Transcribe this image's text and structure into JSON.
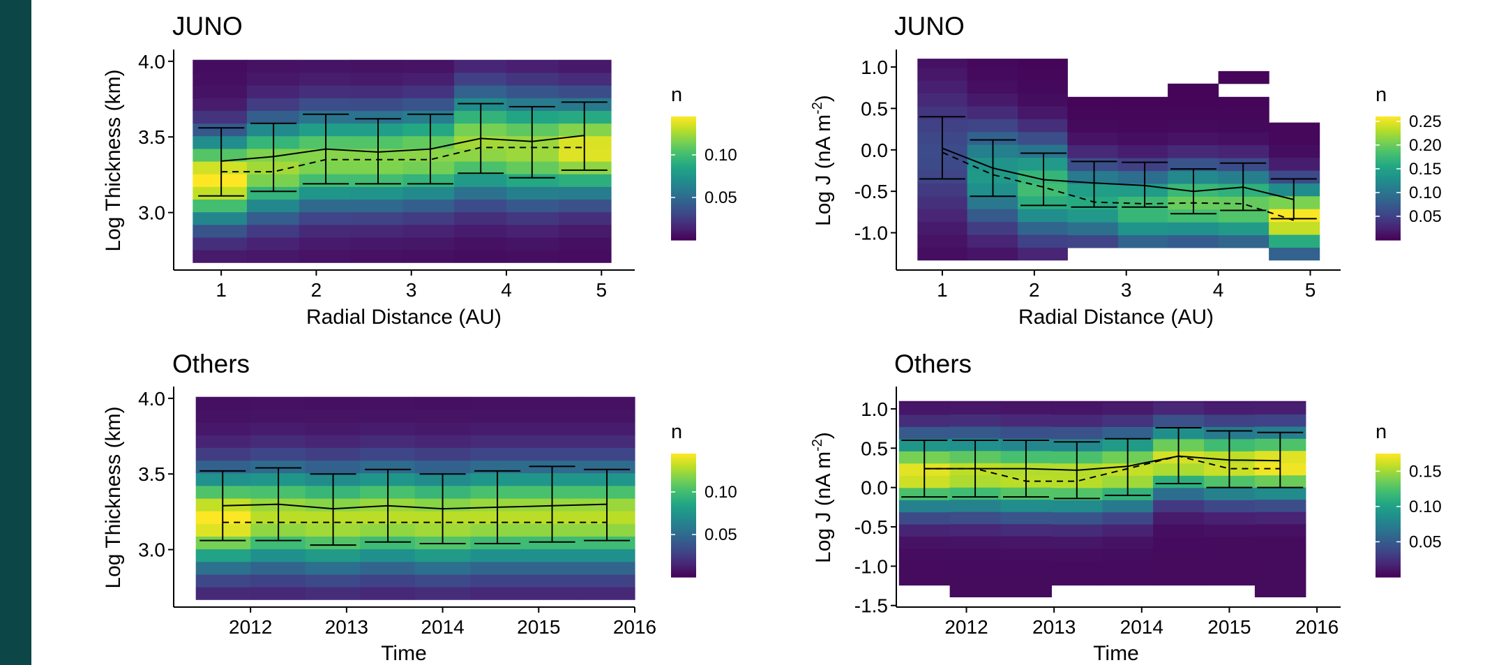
{
  "chart_data": [
    {
      "type": "heatmap",
      "title": "JUNO",
      "xlabel": "Radial Distance (AU)",
      "ylabel": "Log Thickness (km)",
      "x_ticks": [
        1,
        2,
        3,
        4,
        5
      ],
      "y_ticks": [
        3.0,
        3.5,
        4.0
      ],
      "y_tick_labels": [
        "3.0",
        "3.5",
        "4.0"
      ],
      "xlim": [
        0.5,
        5.35
      ],
      "ylim": [
        2.62,
        4.05
      ],
      "x_bins": [
        [
          0.7,
          1.27
        ],
        [
          1.27,
          1.82
        ],
        [
          1.82,
          2.36
        ],
        [
          2.36,
          2.91
        ],
        [
          2.91,
          3.45
        ],
        [
          3.45,
          4.0
        ],
        [
          4.0,
          4.55
        ],
        [
          4.55,
          5.1
        ]
      ],
      "y_bin_edges": [
        2.67,
        4.01
      ],
      "y_bin_count": 16,
      "colorbar": {
        "title": "n",
        "ticks": [
          0.05,
          0.1
        ],
        "tick_labels": [
          "0.05",
          "0.10"
        ],
        "range": [
          0.0,
          0.145
        ]
      },
      "bin_columns": [
        {
          "peak": 3.22,
          "spread": 0.2,
          "max": 0.145,
          "min": 0.005
        },
        {
          "peak": 3.3,
          "spread": 0.22,
          "max": 0.125,
          "min": 0.006
        },
        {
          "peak": 3.35,
          "spread": 0.22,
          "max": 0.12,
          "min": 0.006
        },
        {
          "peak": 3.35,
          "spread": 0.22,
          "max": 0.12,
          "min": 0.005
        },
        {
          "peak": 3.37,
          "spread": 0.22,
          "max": 0.12,
          "min": 0.005
        },
        {
          "peak": 3.45,
          "spread": 0.24,
          "max": 0.125,
          "min": 0.004
        },
        {
          "peak": 3.42,
          "spread": 0.24,
          "max": 0.125,
          "min": 0.004
        },
        {
          "peak": 3.42,
          "spread": 0.22,
          "max": 0.14,
          "min": 0.004
        }
      ],
      "mean_line": {
        "x": [
          1.0,
          1.55,
          2.1,
          2.65,
          3.2,
          3.73,
          4.27,
          4.82
        ],
        "y": [
          3.34,
          3.37,
          3.42,
          3.4,
          3.42,
          3.49,
          3.47,
          3.51
        ]
      },
      "median_line": {
        "x": [
          1.0,
          1.55,
          2.1,
          2.65,
          3.2,
          3.73,
          4.27,
          4.82
        ],
        "y": [
          3.27,
          3.27,
          3.35,
          3.35,
          3.35,
          3.43,
          3.43,
          3.43
        ]
      },
      "error_bars": {
        "x": [
          1.0,
          1.55,
          2.1,
          2.65,
          3.2,
          3.73,
          4.27,
          4.82
        ],
        "low": [
          3.11,
          3.14,
          3.19,
          3.19,
          3.19,
          3.26,
          3.23,
          3.28
        ],
        "high": [
          3.56,
          3.59,
          3.65,
          3.62,
          3.65,
          3.72,
          3.7,
          3.73
        ]
      }
    },
    {
      "type": "heatmap",
      "title": "JUNO",
      "xlabel": "Radial Distance (AU)",
      "ylabel": "Log J (nA m",
      "ylabel_sup": "-2",
      "ylabel_suffix": ")",
      "x_ticks": [
        1,
        2,
        3,
        4,
        5
      ],
      "y_ticks": [
        -1.0,
        -0.5,
        0.0,
        0.5,
        1.0
      ],
      "y_tick_labels": [
        "-1.0",
        "-0.5",
        "0.0",
        "0.5",
        "1.0"
      ],
      "xlim": [
        0.5,
        5.33
      ],
      "ylim": [
        -1.45,
        1.16
      ],
      "x_bins": [
        [
          0.73,
          1.27
        ],
        [
          1.27,
          1.82
        ],
        [
          1.82,
          2.36
        ],
        [
          2.36,
          2.91
        ],
        [
          2.91,
          3.45
        ],
        [
          3.45,
          4.0
        ],
        [
          4.0,
          4.55
        ],
        [
          4.55,
          5.1
        ]
      ],
      "column_y_ranges": [
        [
          -1.33,
          1.1
        ],
        [
          -1.33,
          1.1
        ],
        [
          -1.33,
          1.1
        ],
        [
          -1.18,
          0.64
        ],
        [
          -1.18,
          0.64
        ],
        [
          -1.18,
          0.8
        ],
        [
          -1.18,
          0.64,
          0.8,
          0.95
        ],
        [
          -1.33,
          0.33
        ]
      ],
      "y_bin_size": 0.155,
      "colorbar": {
        "title": "n",
        "ticks": [
          0.05,
          0.1,
          0.15,
          0.2,
          0.25
        ],
        "tick_labels": [
          "0.05",
          "0.10",
          "0.15",
          "0.20",
          "0.25"
        ],
        "range": [
          0.0,
          0.26
        ]
      },
      "bin_columns": [
        {
          "peak": -0.05,
          "spread": 0.55,
          "max": 0.06,
          "min": 0.005
        },
        {
          "peak": -0.3,
          "spread": 0.42,
          "max": 0.14,
          "min": 0.005
        },
        {
          "peak": -0.45,
          "spread": 0.4,
          "max": 0.18,
          "min": 0.004
        },
        {
          "peak": -0.62,
          "spread": 0.32,
          "max": 0.16,
          "min": 0.004
        },
        {
          "peak": -0.7,
          "spread": 0.32,
          "max": 0.18,
          "min": 0.004
        },
        {
          "peak": -0.65,
          "spread": 0.32,
          "max": 0.2,
          "min": 0.004
        },
        {
          "peak": -0.68,
          "spread": 0.32,
          "max": 0.2,
          "min": 0.004
        },
        {
          "peak": -0.82,
          "spread": 0.28,
          "max": 0.26,
          "min": 0.005
        }
      ],
      "mean_line": {
        "x": [
          1.0,
          1.55,
          2.1,
          2.65,
          3.2,
          3.73,
          4.27,
          4.82
        ],
        "y": [
          0.02,
          -0.22,
          -0.36,
          -0.4,
          -0.43,
          -0.5,
          -0.45,
          -0.6
        ]
      },
      "median_line": {
        "x": [
          1.0,
          1.55,
          2.1,
          2.65,
          3.2,
          3.73,
          4.27,
          4.82
        ],
        "y": [
          -0.03,
          -0.3,
          -0.45,
          -0.63,
          -0.65,
          -0.64,
          -0.65,
          -0.85
        ]
      },
      "error_bars": {
        "x": [
          1.0,
          1.55,
          2.1,
          2.65,
          3.2,
          3.73,
          4.27,
          4.82
        ],
        "low": [
          -0.35,
          -0.56,
          -0.67,
          -0.69,
          -0.69,
          -0.77,
          -0.73,
          -0.83
        ],
        "high": [
          0.4,
          0.12,
          -0.04,
          -0.14,
          -0.15,
          -0.23,
          -0.16,
          -0.35
        ]
      }
    },
    {
      "type": "heatmap",
      "title": "Others",
      "xlabel": "Time",
      "ylabel": "Log Thickness (km)",
      "x_ticks": [
        2012,
        2013,
        2014,
        2015,
        2016
      ],
      "y_ticks": [
        3.0,
        3.5,
        4.0
      ],
      "y_tick_labels": [
        "3.0",
        "3.5",
        "4.0"
      ],
      "xlim": [
        2011.2,
        2016.0
      ],
      "ylim": [
        2.62,
        4.05
      ],
      "x_bins": [
        [
          2011.43,
          2012.0
        ],
        [
          2012.0,
          2012.57
        ],
        [
          2012.57,
          2013.14
        ],
        [
          2013.14,
          2013.71
        ],
        [
          2013.71,
          2014.29
        ],
        [
          2014.29,
          2014.86
        ],
        [
          2014.86,
          2015.43
        ],
        [
          2015.43,
          2016.0
        ]
      ],
      "y_bin_edges": [
        2.67,
        4.01
      ],
      "y_bin_count": 16,
      "colorbar": {
        "title": "n",
        "ticks": [
          0.05,
          0.1
        ],
        "tick_labels": [
          "0.05",
          "0.10"
        ],
        "range": [
          0.0,
          0.145
        ]
      },
      "bin_columns": [
        {
          "peak": 3.2,
          "spread": 0.22,
          "max": 0.145,
          "min": 0.006
        },
        {
          "peak": 3.22,
          "spread": 0.23,
          "max": 0.13,
          "min": 0.006
        },
        {
          "peak": 3.2,
          "spread": 0.23,
          "max": 0.13,
          "min": 0.006
        },
        {
          "peak": 3.22,
          "spread": 0.23,
          "max": 0.13,
          "min": 0.006
        },
        {
          "peak": 3.2,
          "spread": 0.23,
          "max": 0.13,
          "min": 0.006
        },
        {
          "peak": 3.22,
          "spread": 0.23,
          "max": 0.13,
          "min": 0.006
        },
        {
          "peak": 3.22,
          "spread": 0.23,
          "max": 0.13,
          "min": 0.006
        },
        {
          "peak": 3.22,
          "spread": 0.23,
          "max": 0.13,
          "min": 0.006
        }
      ],
      "mean_line": {
        "x": [
          2011.71,
          2012.29,
          2012.86,
          2013.43,
          2014.0,
          2014.57,
          2015.14,
          2015.71
        ],
        "y": [
          3.29,
          3.3,
          3.27,
          3.29,
          3.27,
          3.28,
          3.29,
          3.3
        ]
      },
      "median_line": {
        "x": [
          2011.71,
          2012.29,
          2012.86,
          2013.43,
          2014.0,
          2014.57,
          2015.14,
          2015.71
        ],
        "y": [
          3.18,
          3.18,
          3.18,
          3.18,
          3.18,
          3.18,
          3.18,
          3.18
        ]
      },
      "error_bars": {
        "x": [
          2011.71,
          2012.29,
          2012.86,
          2013.43,
          2014.0,
          2014.57,
          2015.14,
          2015.71
        ],
        "low": [
          3.06,
          3.06,
          3.03,
          3.05,
          3.04,
          3.04,
          3.05,
          3.06
        ],
        "high": [
          3.52,
          3.54,
          3.5,
          3.53,
          3.5,
          3.52,
          3.55,
          3.53
        ]
      }
    },
    {
      "type": "heatmap",
      "title": "Others",
      "xlabel": "Time",
      "ylabel": "Log J (nA m",
      "ylabel_sup": "-2",
      "ylabel_suffix": ")",
      "x_ticks": [
        2012,
        2013,
        2014,
        2015,
        2016
      ],
      "y_ticks": [
        -1.5,
        -1.0,
        -0.5,
        0.0,
        0.5,
        1.0
      ],
      "y_tick_labels": [
        "-1.5",
        "-1.0",
        "-0.5",
        "0.0",
        "0.5",
        "1.0"
      ],
      "xlim": [
        2011.2,
        2016.27
      ],
      "ylim": [
        -1.52,
        1.23
      ],
      "x_bins": [
        [
          2011.23,
          2011.81
        ],
        [
          2011.81,
          2012.39
        ],
        [
          2012.39,
          2012.97
        ],
        [
          2012.97,
          2013.55
        ],
        [
          2013.55,
          2014.13
        ],
        [
          2014.13,
          2014.71
        ],
        [
          2014.71,
          2015.29
        ],
        [
          2015.29,
          2015.87
        ]
      ],
      "column_y_ranges": [
        [
          -1.24,
          1.1
        ],
        [
          -1.39,
          1.1
        ],
        [
          -1.39,
          1.1
        ],
        [
          -1.24,
          1.1
        ],
        [
          -1.24,
          1.1
        ],
        [
          -1.24,
          1.1
        ],
        [
          -1.24,
          1.1
        ],
        [
          -1.39,
          1.1
        ]
      ],
      "y_bin_size": 0.155,
      "colorbar": {
        "title": "n",
        "ticks": [
          0.05,
          0.1,
          0.15
        ],
        "tick_labels": [
          "0.05",
          "0.10",
          "0.15"
        ],
        "range": [
          0.0,
          0.175
        ]
      },
      "bin_columns": [
        {
          "peak": 0.18,
          "spread": 0.32,
          "max": 0.17,
          "min": 0.005
        },
        {
          "peak": 0.18,
          "spread": 0.33,
          "max": 0.16,
          "min": 0.005
        },
        {
          "peak": 0.15,
          "spread": 0.33,
          "max": 0.16,
          "min": 0.005
        },
        {
          "peak": 0.15,
          "spread": 0.33,
          "max": 0.16,
          "min": 0.005
        },
        {
          "peak": 0.2,
          "spread": 0.33,
          "max": 0.16,
          "min": 0.005
        },
        {
          "peak": 0.35,
          "spread": 0.3,
          "max": 0.165,
          "min": 0.005
        },
        {
          "peak": 0.3,
          "spread": 0.3,
          "max": 0.165,
          "min": 0.005
        },
        {
          "peak": 0.3,
          "spread": 0.3,
          "max": 0.175,
          "min": 0.005
        }
      ],
      "mean_line": {
        "x": [
          2011.52,
          2012.1,
          2012.68,
          2013.26,
          2013.84,
          2014.42,
          2015.0,
          2015.58
        ],
        "y": [
          0.24,
          0.24,
          0.24,
          0.22,
          0.27,
          0.4,
          0.35,
          0.34
        ]
      },
      "median_line": {
        "x": [
          2011.52,
          2012.1,
          2012.68,
          2013.26,
          2013.84,
          2014.42,
          2015.0,
          2015.58
        ],
        "y": [
          0.24,
          0.24,
          0.08,
          0.08,
          0.24,
          0.4,
          0.24,
          0.24
        ]
      },
      "error_bars": {
        "x": [
          2011.52,
          2012.1,
          2012.68,
          2013.26,
          2013.84,
          2014.42,
          2015.0,
          2015.58
        ],
        "low": [
          -0.12,
          -0.12,
          -0.12,
          -0.14,
          -0.1,
          0.05,
          0.0,
          0.0
        ],
        "high": [
          0.6,
          0.6,
          0.6,
          0.58,
          0.62,
          0.76,
          0.72,
          0.7
        ]
      }
    }
  ]
}
